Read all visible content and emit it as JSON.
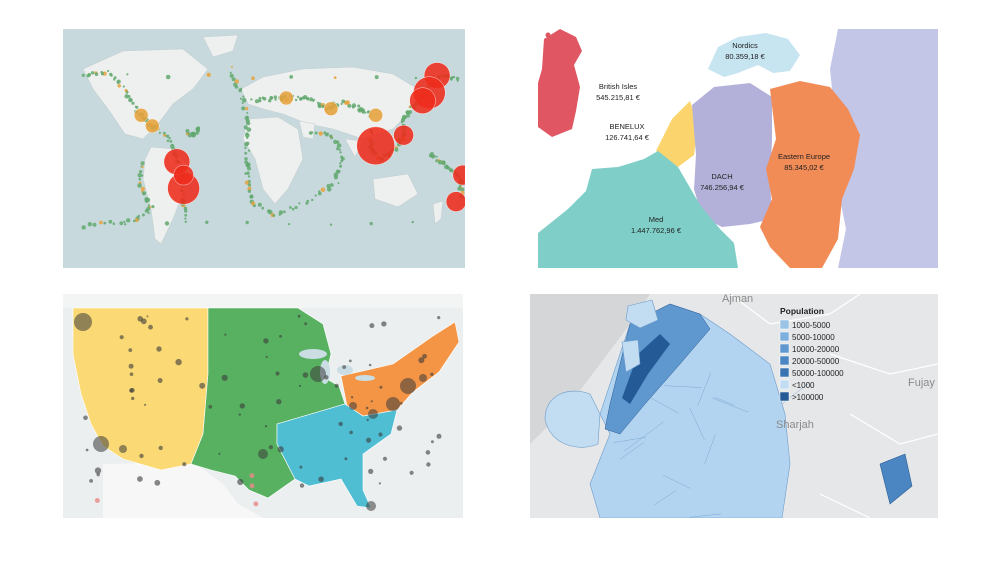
{
  "earthquakes": {
    "colors": {
      "ocean": "#c7d9dc",
      "land": "#eef0ef",
      "small": "#62a86e",
      "medium": "#e6a23c",
      "large": "#ee2b1d"
    },
    "large_events": [
      {
        "lon": 155,
        "lat": 55,
        "mag": 3
      },
      {
        "lon": 148,
        "lat": 42,
        "mag": 4
      },
      {
        "lon": 142,
        "lat": 36,
        "mag": 3
      },
      {
        "lon": 100,
        "lat": 2,
        "mag": 5
      },
      {
        "lon": 125,
        "lat": 10,
        "mag": 2
      },
      {
        "lon": 100,
        "lat": 25,
        "mag": 1
      },
      {
        "lon": -72,
        "lat": -30,
        "mag": 4
      },
      {
        "lon": -78,
        "lat": -10,
        "mag": 3
      },
      {
        "lon": -72,
        "lat": -20,
        "mag": 2
      },
      {
        "lon": 178,
        "lat": -20,
        "mag": 2
      },
      {
        "lon": 172,
        "lat": -40,
        "mag": 2
      },
      {
        "lon": 60,
        "lat": 30,
        "mag": 1
      },
      {
        "lon": 20,
        "lat": 38,
        "mag": 1
      },
      {
        "lon": -100,
        "lat": 17,
        "mag": 1
      },
      {
        "lon": -110,
        "lat": 25,
        "mag": 1
      }
    ]
  },
  "europe": {
    "colors": {
      "british_isles": "#e05662",
      "nordics": "#c6e5f1",
      "benelux": "#fbd46d",
      "dach": "#b3b1d9",
      "eastern": "#f28c57",
      "med": "#7fcfc8",
      "east_region": "#c3c6e6"
    },
    "regions": [
      {
        "name": "British Isles",
        "value": "545.215,81 €"
      },
      {
        "name": "Nordics",
        "value": "80.359,18 €"
      },
      {
        "name": "BENELUX",
        "value": "126.741,64 €"
      },
      {
        "name": "DACH",
        "value": "746.256,94 €"
      },
      {
        "name": "Eastern Europe",
        "value": "85.345,02 €"
      },
      {
        "name": "Med",
        "value": "1.447.762,96 €"
      }
    ]
  },
  "usa": {
    "colors": {
      "west": "#fbda75",
      "central": "#58b161",
      "southeast": "#4fbed3",
      "northeast": "#f49545",
      "dot": "#3a3a3a"
    }
  },
  "sharjah": {
    "places": [
      "Ajman",
      "Sharjah",
      "Fujay"
    ],
    "legend_title": "Population",
    "legend": [
      {
        "label": "1000-5000",
        "color": "#9ac3e6"
      },
      {
        "label": "5000-10000",
        "color": "#7eb0de"
      },
      {
        "label": "10000-20000",
        "color": "#5f97cf"
      },
      {
        "label": "20000-50000",
        "color": "#4b86c3"
      },
      {
        "label": "50000-100000",
        "color": "#3a73b2"
      },
      {
        "label": "<1000",
        "color": "#c2dcf2"
      },
      {
        "label": ">100000",
        "color": "#245a96"
      }
    ]
  }
}
